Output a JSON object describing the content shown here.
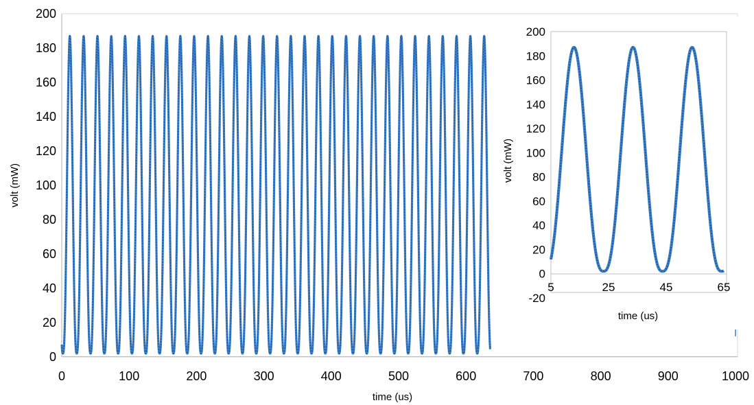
{
  "chart_data": [
    {
      "type": "scatter",
      "xlabel": "time (us)",
      "ylabel": "volt (mW)",
      "xlim": [
        0,
        1000
      ],
      "ylim": [
        0,
        200
      ],
      "xticks": [
        "0",
        "100",
        "200",
        "300",
        "400",
        "500",
        "600",
        "700",
        "800",
        "900",
        "1000"
      ],
      "yticks": [
        "0",
        "20",
        "40",
        "60",
        "80",
        "100",
        "120",
        "140",
        "160",
        "180",
        "200"
      ],
      "series": [
        {
          "color": "#3a7dc9",
          "waveform": "periodic peaks",
          "x_start": 0,
          "x_end": 636,
          "period": 20.5,
          "first_peak": 12,
          "min": 2,
          "max": 187
        }
      ],
      "grid": false,
      "legend": "none"
    },
    {
      "type": "scatter",
      "xlabel": "time (us)",
      "ylabel": "volt (mW)",
      "xlim": [
        5,
        65
      ],
      "ylim": [
        -20,
        200
      ],
      "xticks": [
        "5",
        "25",
        "45",
        "65"
      ],
      "yticks": [
        "-20",
        "0",
        "20",
        "40",
        "60",
        "80",
        "100",
        "120",
        "140",
        "160",
        "180",
        "200"
      ],
      "series": [
        {
          "color": "#3a7dc9",
          "waveform": "periodic peaks",
          "x_start": 5,
          "x_end": 65,
          "period": 20.5,
          "first_peak": 13,
          "min": 2,
          "max": 187
        }
      ],
      "grid": false,
      "legend": "none"
    }
  ]
}
